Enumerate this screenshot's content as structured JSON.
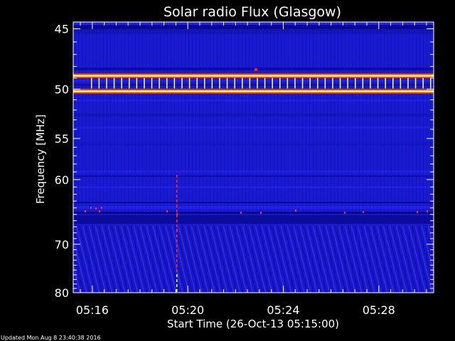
{
  "chart_data": {
    "type": "heatmap",
    "title": "Solar radio Flux (Glasgow)",
    "xlabel": "Start Time (26-Oct-13 05:15:00)",
    "ylabel": "Frequency [MHz]",
    "x_tick_labels": [
      "05:16",
      "05:20",
      "05:24",
      "05:28"
    ],
    "x_tick_minutes": [
      16,
      20,
      24,
      28
    ],
    "x_range_minutes": [
      15.2,
      30.3
    ],
    "y_tick_labels": [
      "45",
      "50",
      "55",
      "60",
      "70",
      "80"
    ],
    "y_tick_values": [
      45,
      50,
      55,
      60,
      70,
      80
    ],
    "y_range": [
      44.5,
      80
    ],
    "y_scale": "reciprocal",
    "interference_bands_mhz": [
      48.8,
      50.2
    ],
    "colors": {
      "background": "#1a1ad0",
      "low": "#05058a",
      "mid": "#2424f0",
      "band_outer": "#ff2a00",
      "band_core": "#ffff80",
      "spike": "#ff3020",
      "axes": "#ffffff"
    }
  },
  "footer": {
    "updated": "Updated Mon Aug  8 23:40:38 2016"
  }
}
